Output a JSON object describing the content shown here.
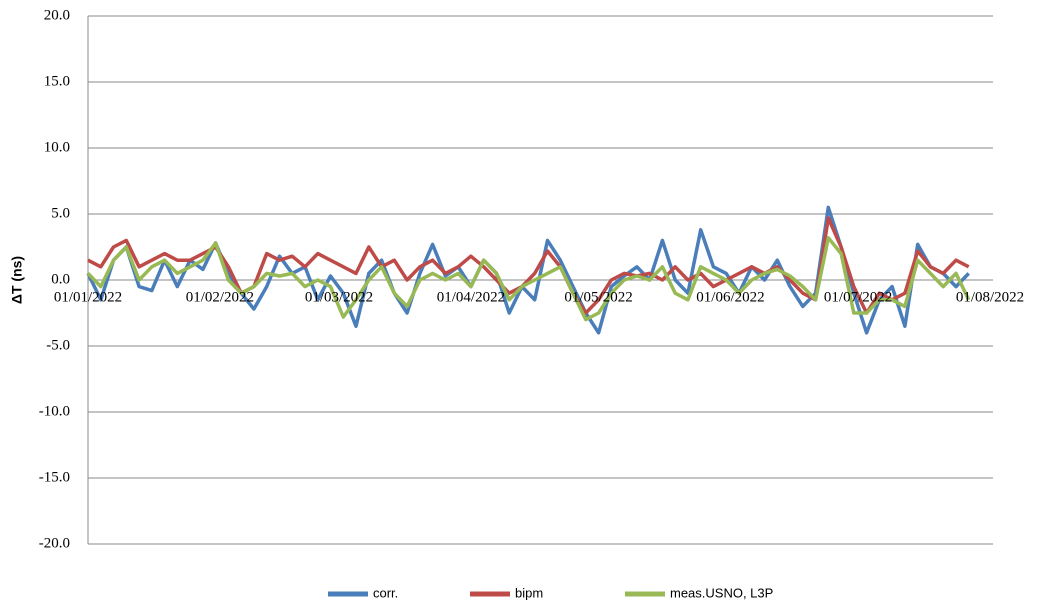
{
  "chart_data": {
    "type": "line",
    "ylabel": "ΔT (ns)",
    "xlim": [
      "2022-01-01",
      "2022-08-01"
    ],
    "xticks": [
      {
        "value": "2022-01-01",
        "label": "01/01/2022"
      },
      {
        "value": "2022-02-01",
        "label": "01/02/2022"
      },
      {
        "value": "2022-03-01",
        "label": "01/03/2022"
      },
      {
        "value": "2022-04-01",
        "label": "01/04/2022"
      },
      {
        "value": "2022-05-01",
        "label": "01/05/2022"
      },
      {
        "value": "2022-06-01",
        "label": "01/06/2022"
      },
      {
        "value": "2022-07-01",
        "label": "01/07/2022"
      },
      {
        "value": "2022-08-01",
        "label": "01/08/2022"
      }
    ],
    "ylim": [
      -20,
      20
    ],
    "yticks": [
      {
        "value": -20,
        "label": "-20.0"
      },
      {
        "value": -15,
        "label": "-15.0"
      },
      {
        "value": -10,
        "label": "-10.0"
      },
      {
        "value": -5,
        "label": "-5.0"
      },
      {
        "value": 0,
        "label": "0.0"
      },
      {
        "value": 5,
        "label": "5.0"
      },
      {
        "value": 10,
        "label": "10.0"
      },
      {
        "value": 15,
        "label": "15.0"
      },
      {
        "value": 20,
        "label": "20.0"
      }
    ],
    "grid": true,
    "legend": "bottom",
    "x": [
      "2022-01-01",
      "2022-01-04",
      "2022-01-07",
      "2022-01-10",
      "2022-01-13",
      "2022-01-16",
      "2022-01-19",
      "2022-01-22",
      "2022-01-25",
      "2022-01-28",
      "2022-01-31",
      "2022-02-03",
      "2022-02-06",
      "2022-02-09",
      "2022-02-12",
      "2022-02-15",
      "2022-02-18",
      "2022-02-21",
      "2022-02-24",
      "2022-02-27",
      "2022-03-02",
      "2022-03-05",
      "2022-03-08",
      "2022-03-11",
      "2022-03-14",
      "2022-03-17",
      "2022-03-20",
      "2022-03-23",
      "2022-03-26",
      "2022-03-29",
      "2022-04-01",
      "2022-04-04",
      "2022-04-07",
      "2022-04-10",
      "2022-04-13",
      "2022-04-16",
      "2022-04-19",
      "2022-04-22",
      "2022-04-25",
      "2022-04-28",
      "2022-05-01",
      "2022-05-04",
      "2022-05-07",
      "2022-05-10",
      "2022-05-13",
      "2022-05-16",
      "2022-05-19",
      "2022-05-22",
      "2022-05-25",
      "2022-05-28",
      "2022-05-31",
      "2022-06-03",
      "2022-06-06",
      "2022-06-09",
      "2022-06-12",
      "2022-06-15",
      "2022-06-18",
      "2022-06-21",
      "2022-06-24",
      "2022-06-27",
      "2022-06-30",
      "2022-07-03",
      "2022-07-06",
      "2022-07-09",
      "2022-07-12",
      "2022-07-15",
      "2022-07-18",
      "2022-07-21",
      "2022-07-24",
      "2022-07-27"
    ],
    "series": [
      {
        "name": "corr.",
        "color": "#4a7ebb",
        "values": [
          0.5,
          -1.5,
          1.5,
          2.5,
          -0.5,
          -0.8,
          1.5,
          -0.5,
          1.5,
          0.8,
          2.8,
          0.5,
          -1.0,
          -2.2,
          -0.5,
          1.8,
          0.5,
          1.0,
          -1.5,
          0.3,
          -1.0,
          -3.5,
          0.5,
          1.5,
          -1.0,
          -2.5,
          0.5,
          2.7,
          0.3,
          1.0,
          -0.5,
          1.5,
          0.5,
          -2.5,
          -0.5,
          -1.5,
          3.0,
          1.5,
          -0.5,
          -2.5,
          -4.0,
          -0.5,
          0.3,
          1.0,
          0.0,
          3.0,
          0.0,
          -1.0,
          3.8,
          1.0,
          0.5,
          -1.0,
          1.0,
          0.0,
          1.5,
          -0.5,
          -2.0,
          -1.0,
          5.5,
          2.5,
          -1.0,
          -4.0,
          -1.5,
          -0.5,
          -3.5,
          2.7,
          1.0,
          0.5,
          -0.5,
          0.5
        ]
      },
      {
        "name": "bipm",
        "color": "#be4b48",
        "values": [
          1.5,
          1.0,
          2.5,
          3.0,
          1.0,
          1.5,
          2.0,
          1.5,
          1.5,
          2.0,
          2.5,
          1.0,
          -1.0,
          -0.5,
          2.0,
          1.5,
          1.8,
          1.0,
          2.0,
          1.5,
          1.0,
          0.5,
          2.5,
          1.0,
          1.5,
          0.0,
          1.0,
          1.5,
          0.5,
          1.0,
          1.8,
          1.0,
          0.0,
          -1.0,
          -0.5,
          0.5,
          2.2,
          1.0,
          -1.0,
          -2.5,
          -1.5,
          0.0,
          0.5,
          0.3,
          0.5,
          0.0,
          1.0,
          0.0,
          0.5,
          -0.5,
          0.0,
          0.5,
          1.0,
          0.5,
          1.0,
          0.0,
          -1.0,
          -1.5,
          4.7,
          2.5,
          -0.5,
          -2.5,
          -1.0,
          -1.5,
          -1.0,
          2.2,
          1.0,
          0.5,
          1.5,
          1.0
        ]
      },
      {
        "name": "meas.USNO, L3P",
        "color": "#98b954",
        "values": [
          0.5,
          -0.5,
          1.5,
          2.5,
          0.0,
          1.0,
          1.5,
          0.5,
          1.0,
          1.5,
          2.8,
          0.0,
          -1.0,
          -0.5,
          0.5,
          0.3,
          0.5,
          -0.5,
          0.0,
          -0.5,
          -2.8,
          -1.5,
          0.0,
          1.0,
          -1.0,
          -2.0,
          0.0,
          0.5,
          0.0,
          0.5,
          -0.5,
          1.5,
          0.5,
          -1.5,
          -0.5,
          0.0,
          0.5,
          1.0,
          -1.0,
          -3.0,
          -2.5,
          -1.0,
          0.0,
          0.3,
          0.0,
          1.0,
          -1.0,
          -1.5,
          1.0,
          0.5,
          0.0,
          -1.0,
          0.0,
          0.5,
          0.8,
          0.3,
          -0.5,
          -1.5,
          3.2,
          2.0,
          -2.5,
          -2.5,
          -1.5,
          -1.5,
          -2.0,
          1.5,
          0.5,
          -0.5,
          0.5,
          -1.5
        ]
      }
    ]
  }
}
